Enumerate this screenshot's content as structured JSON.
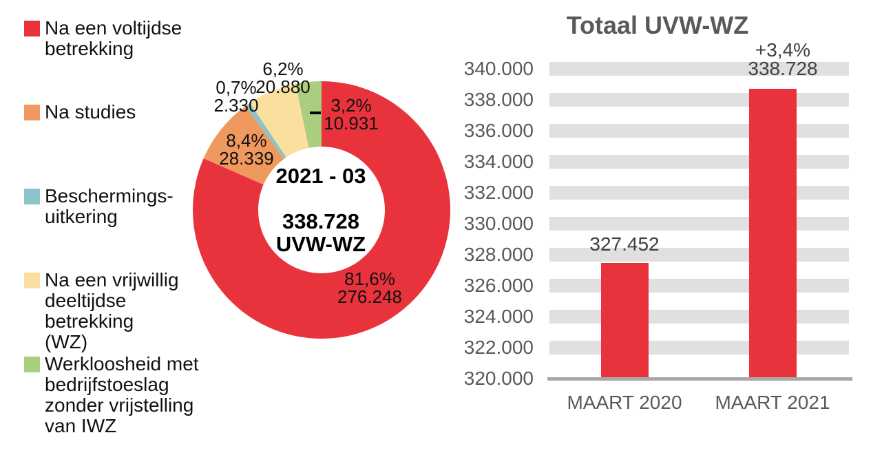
{
  "colors": {
    "red": "#E9333C",
    "orange": "#F0995F",
    "teal": "#8AC4C8",
    "yellow": "#FBDF9E",
    "green": "#ABCD80",
    "grid_band": "#E0E0E0",
    "axis_line": "#A8A8A8",
    "axis_text": "#595959",
    "value_text": "#404040",
    "label_text": "#111111"
  },
  "chart_data": [
    {
      "type": "pie",
      "subtype": "donut",
      "period": "2021 - 03",
      "total": 338728,
      "total_unit": "UVW-WZ",
      "center_label": "2021 - 03\n\n338.728\nUVW-WZ",
      "slices": [
        {
          "id": "voltijdse",
          "name": "Na een voltijdse betrekking",
          "value": 276248,
          "pct": "81,6%",
          "label": "81,6%\n276.248",
          "color_key": "red"
        },
        {
          "id": "studies",
          "name": "Na studies",
          "value": 28339,
          "pct": "8,4%",
          "label": "8,4%\n28.339",
          "color_key": "orange"
        },
        {
          "id": "beschermingsuitkering",
          "name": "Beschermings-uitkering",
          "value": 2330,
          "pct": "0,7%",
          "label": "0,7%\n2.330",
          "color_key": "teal"
        },
        {
          "id": "vrijwillig-deeltijdse",
          "name": "Na een vrijwillig deeltijdse betrekking (WZ)",
          "value": 20880,
          "pct": "6,2%",
          "label": "6,2%\n20.880",
          "color_key": "yellow"
        },
        {
          "id": "bedrijfstoeslag",
          "name": "Werkloosheid met bedrijfstoeslag zonder vrijstelling van IWZ",
          "value": 10931,
          "pct": "3,2%",
          "label": "3,2%\n10.931",
          "color_key": "green"
        }
      ],
      "legend": [
        {
          "label": "Na een voltijdse\nbetrekking",
          "color_key": "red"
        },
        {
          "label": "Na studies",
          "color_key": "orange"
        },
        {
          "label": "Beschermings-\nuitkering",
          "color_key": "teal"
        },
        {
          "label": "Na een vrijwillig\ndeeltijdse betrekking\n(WZ)",
          "color_key": "yellow"
        },
        {
          "label": "Werkloosheid met\nbedrijfstoeslag\nzonder vrijstelling\nvan IWZ",
          "color_key": "green"
        }
      ],
      "legend_position": "left"
    },
    {
      "type": "bar",
      "title": "Totaal UVW-WZ",
      "categories": [
        "MAART 2020",
        "MAART 2021"
      ],
      "values": [
        327452,
        338728
      ],
      "bar_labels": [
        "327.452",
        "+3,4%\n338.728"
      ],
      "ylim": [
        320000,
        340000
      ],
      "ytick_step": 2000,
      "grid": "thick horizontal bands",
      "yticks": [
        {
          "value": 340000,
          "label": "340.000"
        },
        {
          "value": 338000,
          "label": "338.000"
        },
        {
          "value": 336000,
          "label": "336.000"
        },
        {
          "value": 334000,
          "label": "334.000"
        },
        {
          "value": 332000,
          "label": "332.000"
        },
        {
          "value": 330000,
          "label": "330.000"
        },
        {
          "value": 328000,
          "label": "328.000"
        },
        {
          "value": 326000,
          "label": "326.000"
        },
        {
          "value": 324000,
          "label": "324.000"
        },
        {
          "value": 322000,
          "label": "322.000"
        },
        {
          "value": 320000,
          "label": "320.000"
        }
      ]
    }
  ]
}
